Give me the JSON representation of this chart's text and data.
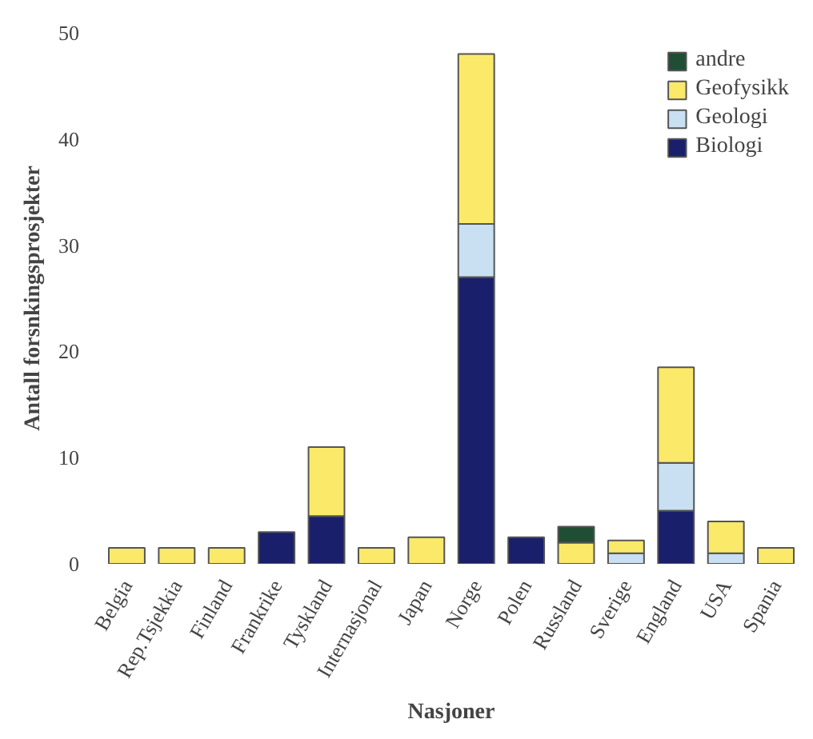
{
  "chart_data": {
    "type": "bar",
    "stacked": true,
    "xlabel": "Nasjoner",
    "ylabel": "Antall forsnkingsprosjekter",
    "categories": [
      "Belgia",
      "Rep.Tsjekkia",
      "Finland",
      "Frankrike",
      "Tyskland",
      "Internasjonal",
      "Japan",
      "Norge",
      "Polen",
      "Russland",
      "Sverige",
      "England",
      "USA",
      "Spania"
    ],
    "series": [
      {
        "name": "Biologi",
        "color": "#1a1f6b",
        "values": [
          0,
          0,
          0,
          3,
          4.5,
          0,
          0,
          27,
          2.5,
          0,
          0,
          5,
          0,
          0
        ]
      },
      {
        "name": "Geologi",
        "color": "#c9e0f2",
        "values": [
          0,
          0,
          0,
          0,
          0,
          0,
          0,
          5,
          0,
          0,
          1,
          4.5,
          1,
          0
        ]
      },
      {
        "name": "Geofysikk",
        "color": "#fbe96a",
        "values": [
          1.5,
          1.5,
          1.5,
          0,
          6.5,
          1.5,
          2.5,
          16,
          0,
          2,
          1.2,
          9,
          3,
          1.5
        ]
      },
      {
        "name": "andre",
        "color": "#1f4e35",
        "values": [
          0,
          0,
          0,
          0,
          0,
          0,
          0,
          0,
          0,
          1.5,
          0,
          0,
          0,
          0
        ]
      }
    ],
    "ylim": [
      0,
      50
    ],
    "yticks": [
      0,
      10,
      20,
      30,
      40,
      50
    ],
    "grid": false,
    "legend": "top right"
  }
}
